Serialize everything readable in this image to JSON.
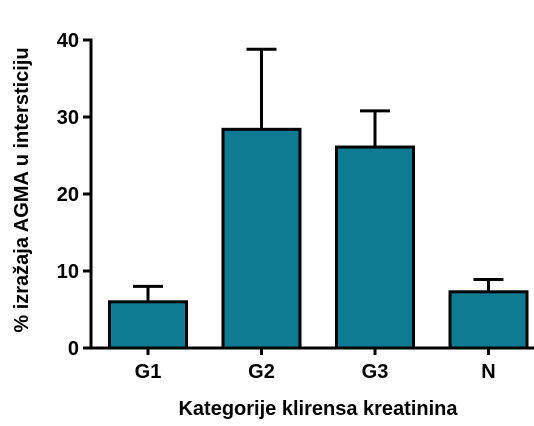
{
  "chart_data": {
    "type": "bar",
    "title": "",
    "xlabel": "Kategorije klirensa kreatinina",
    "ylabel": "% izražaja AGMA u intersticiju",
    "categories": [
      "G1",
      "G2",
      "G3",
      "N"
    ],
    "values": [
      6,
      28.4,
      26.1,
      7.3
    ],
    "error_upper": [
      8,
      38.8,
      30.8,
      8.9
    ],
    "ylim": [
      0,
      40
    ],
    "yticks": [
      0,
      10,
      20,
      30,
      40
    ],
    "grid": false,
    "bar_color": "#0e7b92",
    "edge_color": "#000000"
  }
}
